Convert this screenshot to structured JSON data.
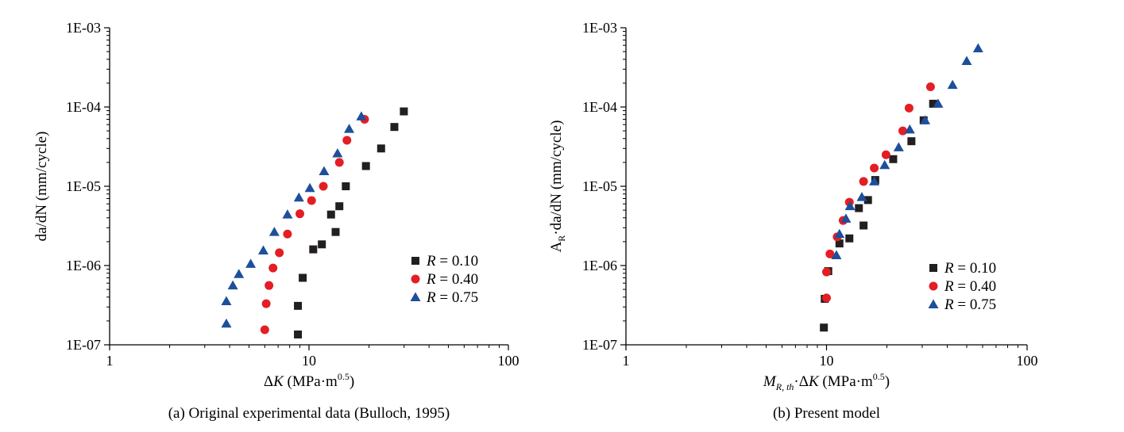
{
  "figure": {
    "colors": {
      "axis": "#000000",
      "r010": "#231f20",
      "r040": "#e31e24",
      "r075": "#1d4f9c"
    }
  },
  "chart_data": [
    {
      "type": "scatter",
      "caption": "(a) Original experimental data (Bulloch, 1995)",
      "x_scale": "log",
      "y_scale": "log",
      "xlim": [
        1,
        100
      ],
      "ylim": [
        1e-07,
        0.001
      ],
      "x_ticks": [
        "1",
        "10",
        "100"
      ],
      "y_ticks": [
        "1E-07",
        "1E-06",
        "1E-05",
        "1E-04",
        "1E-03"
      ],
      "xlabel": {
        "prefix": "Δ",
        "italic": "K",
        "main": " (MPa·m",
        "sup": "0.5",
        "suffix": ")"
      },
      "ylabel": {
        "main": "da/dN (mm/cycle)"
      },
      "legend": "right-middle",
      "series": [
        {
          "name": "R = 0.10",
          "label_italic": "R",
          "label_rest": " = 0.10",
          "marker": "square",
          "color": "#231f20",
          "points": [
            [
              8.8,
              1.35e-07
            ],
            [
              8.8,
              3.1e-07
            ],
            [
              9.3,
              7e-07
            ],
            [
              10.5,
              1.6e-06
            ],
            [
              11.6,
              1.85e-06
            ],
            [
              12.9,
              4.4e-06
            ],
            [
              13.6,
              2.65e-06
            ],
            [
              14.2,
              5.6e-06
            ],
            [
              15.3,
              1e-05
            ],
            [
              19.3,
              1.8e-05
            ],
            [
              23.0,
              3e-05
            ],
            [
              26.8,
              5.6e-05
            ],
            [
              29.9,
              8.8e-05
            ]
          ]
        },
        {
          "name": "R = 0.40",
          "label_italic": "R",
          "label_rest": " = 0.40",
          "marker": "circle",
          "color": "#e31e24",
          "points": [
            [
              6.0,
              1.55e-07
            ],
            [
              6.1,
              3.3e-07
            ],
            [
              6.3,
              5.6e-07
            ],
            [
              6.6,
              9.3e-07
            ],
            [
              7.1,
              1.45e-06
            ],
            [
              7.8,
              2.5e-06
            ],
            [
              9.0,
              4.5e-06
            ],
            [
              10.3,
              6.6e-06
            ],
            [
              11.8,
              1e-05
            ],
            [
              14.2,
              2e-05
            ],
            [
              15.5,
              3.8e-05
            ],
            [
              19.0,
              7e-05
            ]
          ]
        },
        {
          "name": "R = 0.75",
          "label_italic": "R",
          "label_rest": " = 0.75",
          "marker": "triangle",
          "color": "#1d4f9c",
          "points": [
            [
              3.85,
              1.85e-07
            ],
            [
              3.85,
              3.55e-07
            ],
            [
              4.15,
              5.6e-07
            ],
            [
              4.45,
              7.8e-07
            ],
            [
              5.1,
              1.05e-06
            ],
            [
              5.9,
              1.55e-06
            ],
            [
              6.7,
              2.65e-06
            ],
            [
              7.8,
              4.4e-06
            ],
            [
              8.9,
              7.2e-06
            ],
            [
              10.1,
              9.5e-06
            ],
            [
              11.9,
              1.55e-05
            ],
            [
              13.9,
              2.6e-05
            ],
            [
              15.9,
              5.3e-05
            ],
            [
              18.3,
              7.6e-05
            ]
          ]
        }
      ]
    },
    {
      "type": "scatter",
      "caption": "(b) Present model",
      "x_scale": "log",
      "y_scale": "log",
      "xlim": [
        1,
        100
      ],
      "ylim": [
        1e-07,
        0.001
      ],
      "x_ticks": [
        "1",
        "10",
        "100"
      ],
      "y_ticks": [
        "1E-07",
        "1E-06",
        "1E-05",
        "1E-04",
        "1E-03"
      ],
      "xlabel": {
        "prefix_italic": "M",
        "prefix_sub": "R, th",
        "mid": "·Δ",
        "italic": "K",
        "main": " (MPa·m",
        "sup": "0.5",
        "suffix": ")"
      },
      "ylabel": {
        "pre": "A",
        "sub": "R",
        "main": "·da/dN (mm/cycle)"
      },
      "legend": "right-middle",
      "series": [
        {
          "name": "R = 0.10",
          "label_italic": "R",
          "label_rest": " = 0.10",
          "marker": "square",
          "color": "#231f20",
          "points": [
            [
              9.7,
              1.65e-07
            ],
            [
              9.8,
              3.8e-07
            ],
            [
              10.2,
              8.5e-07
            ],
            [
              11.6,
              1.9e-06
            ],
            [
              13.0,
              2.2e-06
            ],
            [
              14.5,
              5.3e-06
            ],
            [
              15.3,
              3.2e-06
            ],
            [
              16.1,
              6.7e-06
            ],
            [
              17.5,
              1.2e-05
            ],
            [
              21.5,
              2.2e-05
            ],
            [
              26.5,
              3.7e-05
            ],
            [
              30.5,
              6.8e-05
            ],
            [
              34.0,
              0.00011
            ]
          ]
        },
        {
          "name": "R = 0.40",
          "label_italic": "R",
          "label_rest": " = 0.40",
          "marker": "circle",
          "color": "#e31e24",
          "points": [
            [
              10.0,
              3.9e-07
            ],
            [
              10.0,
              8.3e-07
            ],
            [
              10.4,
              1.4e-06
            ],
            [
              11.3,
              2.3e-06
            ],
            [
              12.1,
              3.7e-06
            ],
            [
              13.0,
              6.3e-06
            ],
            [
              15.3,
              1.15e-05
            ],
            [
              17.3,
              1.7e-05
            ],
            [
              19.8,
              2.5e-05
            ],
            [
              24.0,
              5e-05
            ],
            [
              25.8,
              9.7e-05
            ],
            [
              33.0,
              0.00018
            ]
          ]
        },
        {
          "name": "R = 0.75",
          "label_italic": "R",
          "label_rest": " = 0.75",
          "marker": "triangle",
          "color": "#1d4f9c",
          "points": [
            [
              11.2,
              1.35e-06
            ],
            [
              11.6,
              2.5e-06
            ],
            [
              12.5,
              3.9e-06
            ],
            [
              13.1,
              5.6e-06
            ],
            [
              15.0,
              7.3e-06
            ],
            [
              17.3,
              1.15e-05
            ],
            [
              19.5,
              1.85e-05
            ],
            [
              22.9,
              3.1e-05
            ],
            [
              26.0,
              5.2e-05
            ],
            [
              31.0,
              6.8e-05
            ],
            [
              36.0,
              0.00011
            ],
            [
              42.5,
              0.00019
            ],
            [
              50.0,
              0.00038
            ],
            [
              57.0,
              0.00055
            ]
          ]
        }
      ]
    }
  ]
}
